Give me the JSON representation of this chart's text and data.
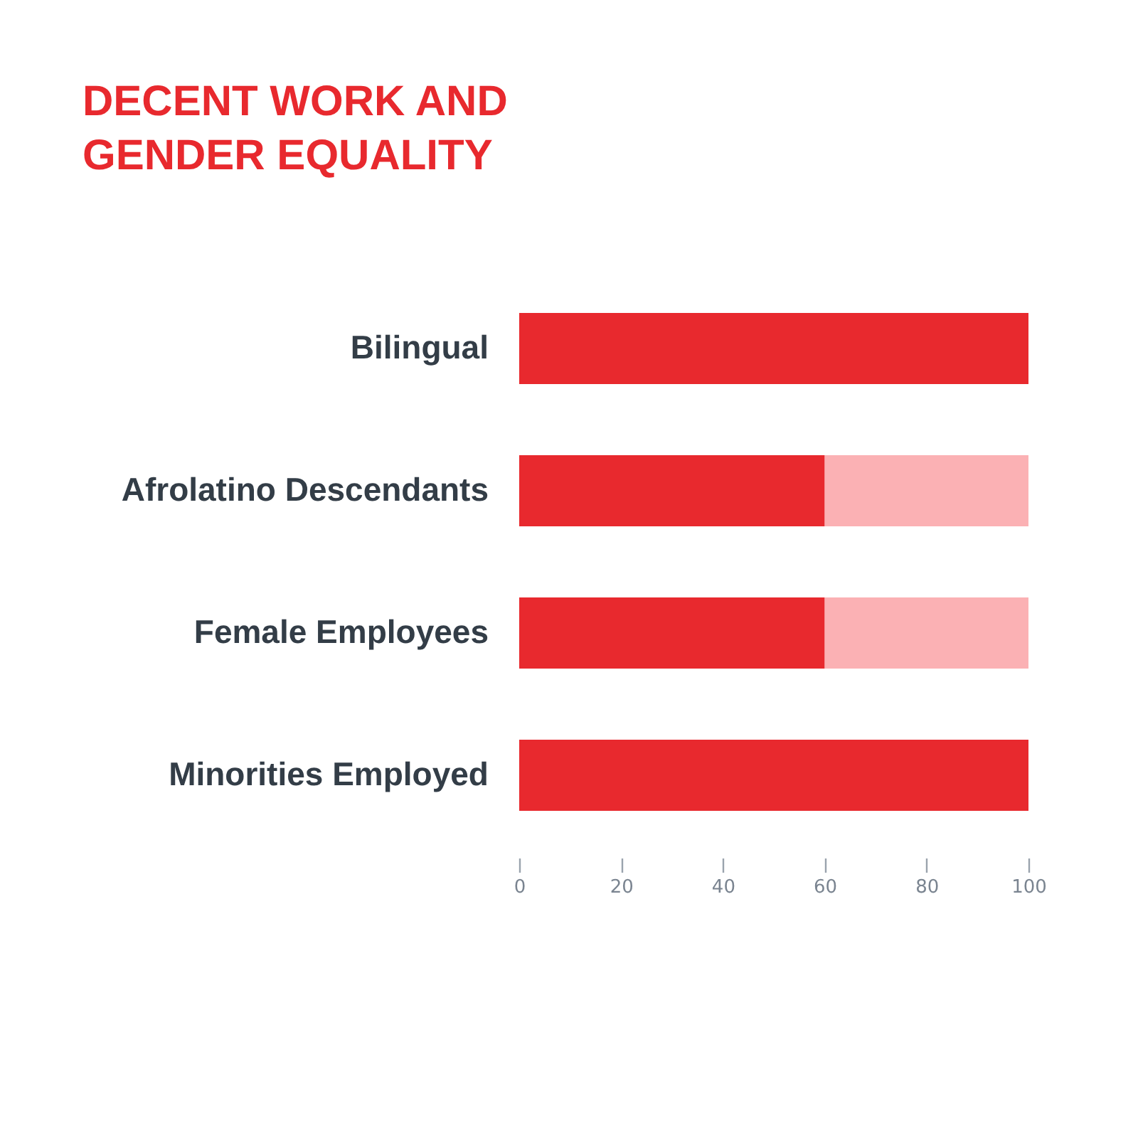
{
  "chart_data": {
    "type": "bar",
    "orientation": "horizontal",
    "stacked": true,
    "title": [
      "DECENT WORK AND",
      "GENDER EQUALITY"
    ],
    "categories": [
      "Bilingual",
      "Afrolatino Descendants",
      "Female Employees",
      "Minorities Employed"
    ],
    "series": [
      {
        "color": "#e8292e",
        "values": [
          100,
          60,
          60,
          100
        ]
      },
      {
        "color": "#fbb1b4",
        "values": [
          0,
          40,
          40,
          0
        ]
      }
    ],
    "xlim": [
      0,
      100
    ],
    "xticks": [
      0,
      20,
      40,
      60,
      80,
      100
    ],
    "grid": false,
    "legend": false
  }
}
